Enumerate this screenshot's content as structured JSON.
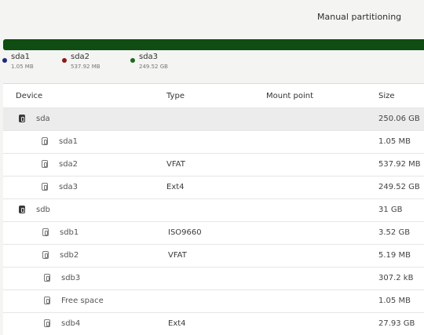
{
  "window": {
    "title": "Manual partitioning"
  },
  "usage_bar": {
    "color": "#0f4d12",
    "legend": [
      {
        "name": "sda1",
        "size": "1.05 MB",
        "color": "#1f2a78"
      },
      {
        "name": "sda2",
        "size": "537.92 MB",
        "color": "#8b1a1a"
      },
      {
        "name": "sda3",
        "size": "249.52 GB",
        "color": "#1a6a1a"
      }
    ]
  },
  "table": {
    "headers": {
      "device": "Device",
      "type": "Type",
      "mount": "Mount point",
      "size": "Size"
    },
    "rows": [
      {
        "device": "sda",
        "type": "",
        "mount": "",
        "size": "250.06 GB",
        "kind": "disk"
      },
      {
        "device": "sda1",
        "type": "",
        "mount": "",
        "size": "1.05 MB",
        "kind": "partition"
      },
      {
        "device": "sda2",
        "type": "VFAT",
        "mount": "",
        "size": "537.92 MB",
        "kind": "partition"
      },
      {
        "device": "sda3",
        "type": "Ext4",
        "mount": "",
        "size": "249.52 GB",
        "kind": "partition"
      },
      {
        "device": "sdb",
        "type": "",
        "mount": "",
        "size": "31 GB",
        "kind": "disk"
      },
      {
        "device": "sdb1",
        "type": "ISO9660",
        "mount": "",
        "size": "3.52 GB",
        "kind": "partition"
      },
      {
        "device": "sdb2",
        "type": "VFAT",
        "mount": "",
        "size": "5.19 MB",
        "kind": "partition"
      },
      {
        "device": "sdb3",
        "type": "",
        "mount": "",
        "size": "307.2 kB",
        "kind": "partition"
      },
      {
        "device": "Free space",
        "type": "",
        "mount": "",
        "size": "1.05 MB",
        "kind": "free"
      },
      {
        "device": "sdb4",
        "type": "Ext4",
        "mount": "",
        "size": "27.93 GB",
        "kind": "partition"
      }
    ]
  }
}
